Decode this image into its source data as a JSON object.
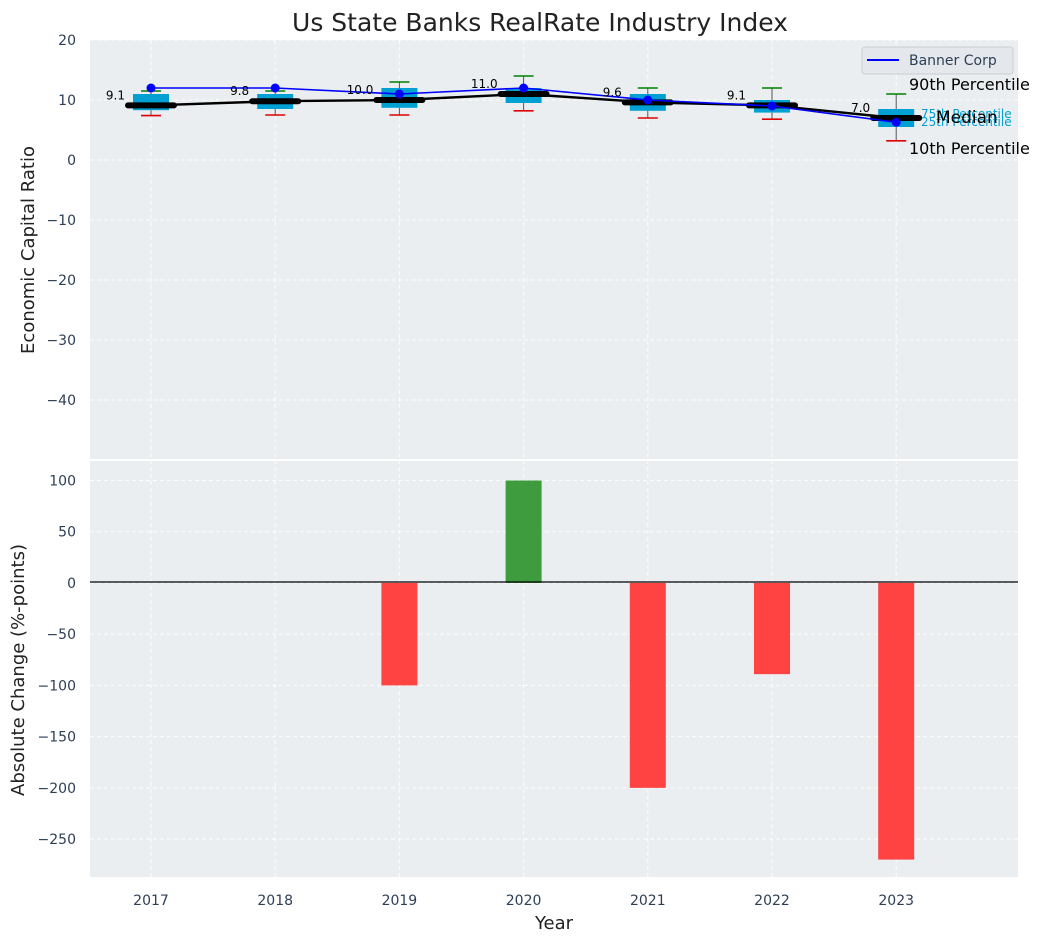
{
  "chart_data": {
    "title": "Us State Banks RealRate Industry Index",
    "xlabel": "Year",
    "years": [
      "2017",
      "2018",
      "2019",
      "2020",
      "2021",
      "2022",
      "2023"
    ],
    "colors": {
      "background": "#eaeef0",
      "box": "#00a0d2",
      "median": "#000000",
      "banner": "#0000ff",
      "p90_whisker": "#008000",
      "p10_whisker": "#e00000",
      "bar_positive": "#3a9a3a",
      "bar_negative": "#ff3f3f",
      "percentile_label": "#00a0d2"
    },
    "top": {
      "type": "box",
      "ylabel": "Economic Capital Ratio",
      "ylim": [
        -50,
        20
      ],
      "yticks": [
        20,
        10,
        0,
        -10,
        -20,
        -30,
        -40
      ],
      "p10": [
        7.4,
        7.5,
        7.5,
        8.2,
        7.0,
        6.8,
        3.2
      ],
      "p25": [
        8.3,
        8.5,
        8.7,
        9.5,
        8.2,
        7.9,
        5.5
      ],
      "median": [
        9.1,
        9.8,
        10.0,
        11.0,
        9.6,
        9.1,
        7.0
      ],
      "p75": [
        11.0,
        11.0,
        12.0,
        12.0,
        11.0,
        10.0,
        8.5
      ],
      "p90": [
        11.5,
        11.5,
        13.0,
        14.0,
        12.0,
        12.0,
        11.0
      ],
      "median_labels": [
        "9.1",
        "9.8",
        "10.0",
        "11.0",
        "9.6",
        "9.1",
        "7.0"
      ],
      "banner": {
        "name": "Banner Corp",
        "values": [
          12.0,
          12.0,
          11.0,
          12.0,
          10.0,
          9.0,
          6.3
        ]
      },
      "legend_position": "upper right",
      "annotations": {
        "p90": "90th Percentile",
        "p75": "75th Percentile",
        "median": "Median",
        "p25": "25th Percentile",
        "p10": "10th Percentile"
      }
    },
    "bottom": {
      "type": "bar",
      "ylabel": "Absolute Change (%-points)",
      "ylim": [
        -287,
        120
      ],
      "yticks": [
        100,
        50,
        0,
        -50,
        -100,
        -150,
        -200,
        -250
      ],
      "values": [
        0,
        0,
        -100,
        100,
        -200,
        -89,
        -270
      ]
    }
  }
}
